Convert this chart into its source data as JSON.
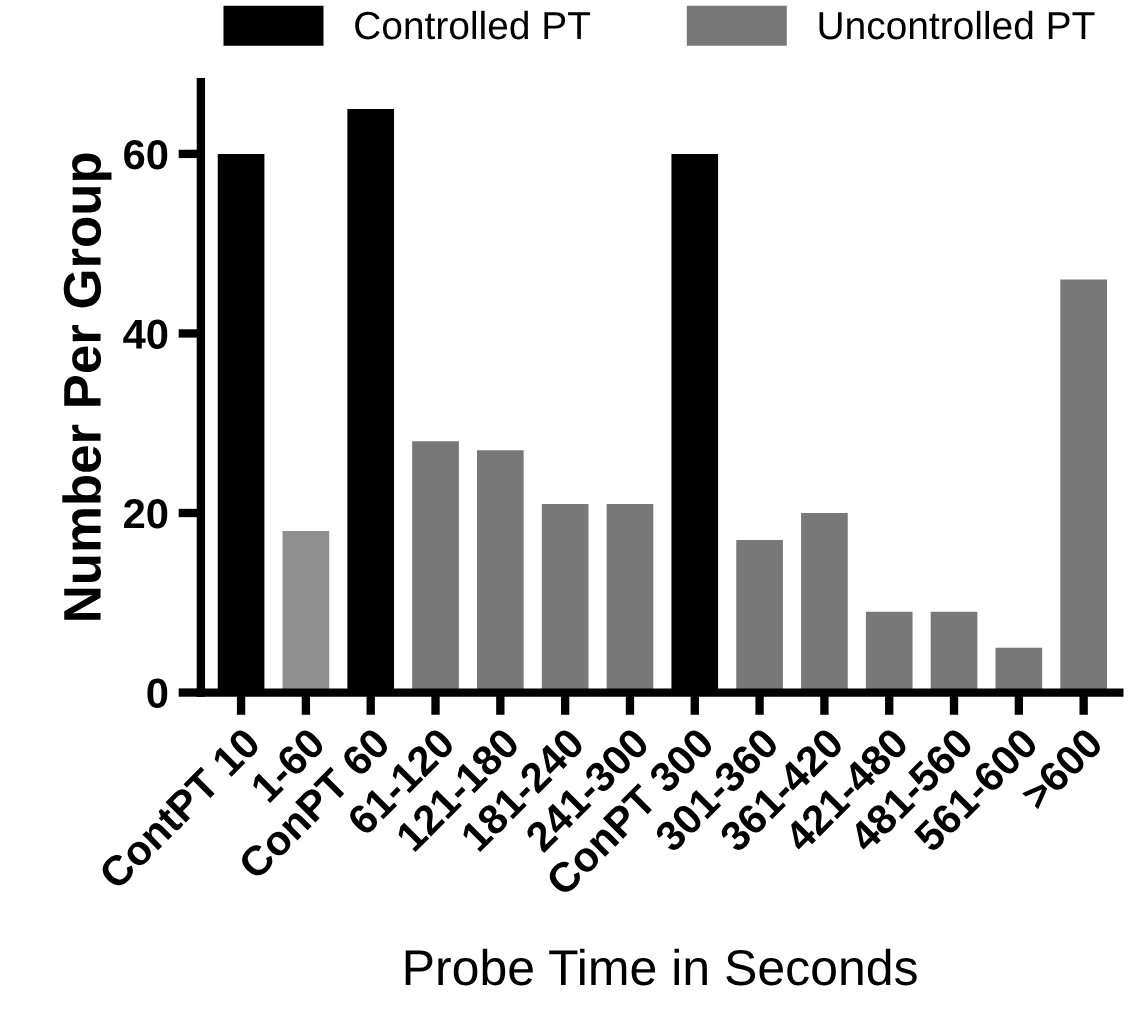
{
  "chart_data": {
    "type": "bar",
    "xlabel": "Probe Time in Seconds",
    "ylabel": "Number Per Group",
    "categories": [
      "ContPT 10",
      "1-60",
      "ConPT 60",
      "61-120",
      "121-180",
      "181-240",
      "241-300",
      "ConPT 300",
      "301-360",
      "361-420",
      "421-480",
      "481-560",
      "561-600",
      ">600"
    ],
    "series": [
      {
        "name": "Controlled PT",
        "color": "#000000",
        "values": [
          60,
          null,
          65,
          null,
          null,
          null,
          null,
          60,
          null,
          null,
          null,
          null,
          null,
          null
        ]
      },
      {
        "name": "Uncontrolled PT",
        "color": "#787878",
        "colors": [
          null,
          "#8f8f8f",
          null,
          "#787878",
          "#787878",
          "#787878",
          "#787878",
          null,
          "#787878",
          "#787878",
          "#787878",
          "#787878",
          "#787878",
          "#787878"
        ],
        "values": [
          null,
          18,
          null,
          28,
          27,
          21,
          21,
          null,
          17,
          20,
          9,
          9,
          5,
          46
        ]
      }
    ],
    "ylim": [
      0,
      68
    ],
    "yticks": [
      0,
      20,
      40,
      60
    ],
    "grid": false,
    "legend": "top"
  }
}
